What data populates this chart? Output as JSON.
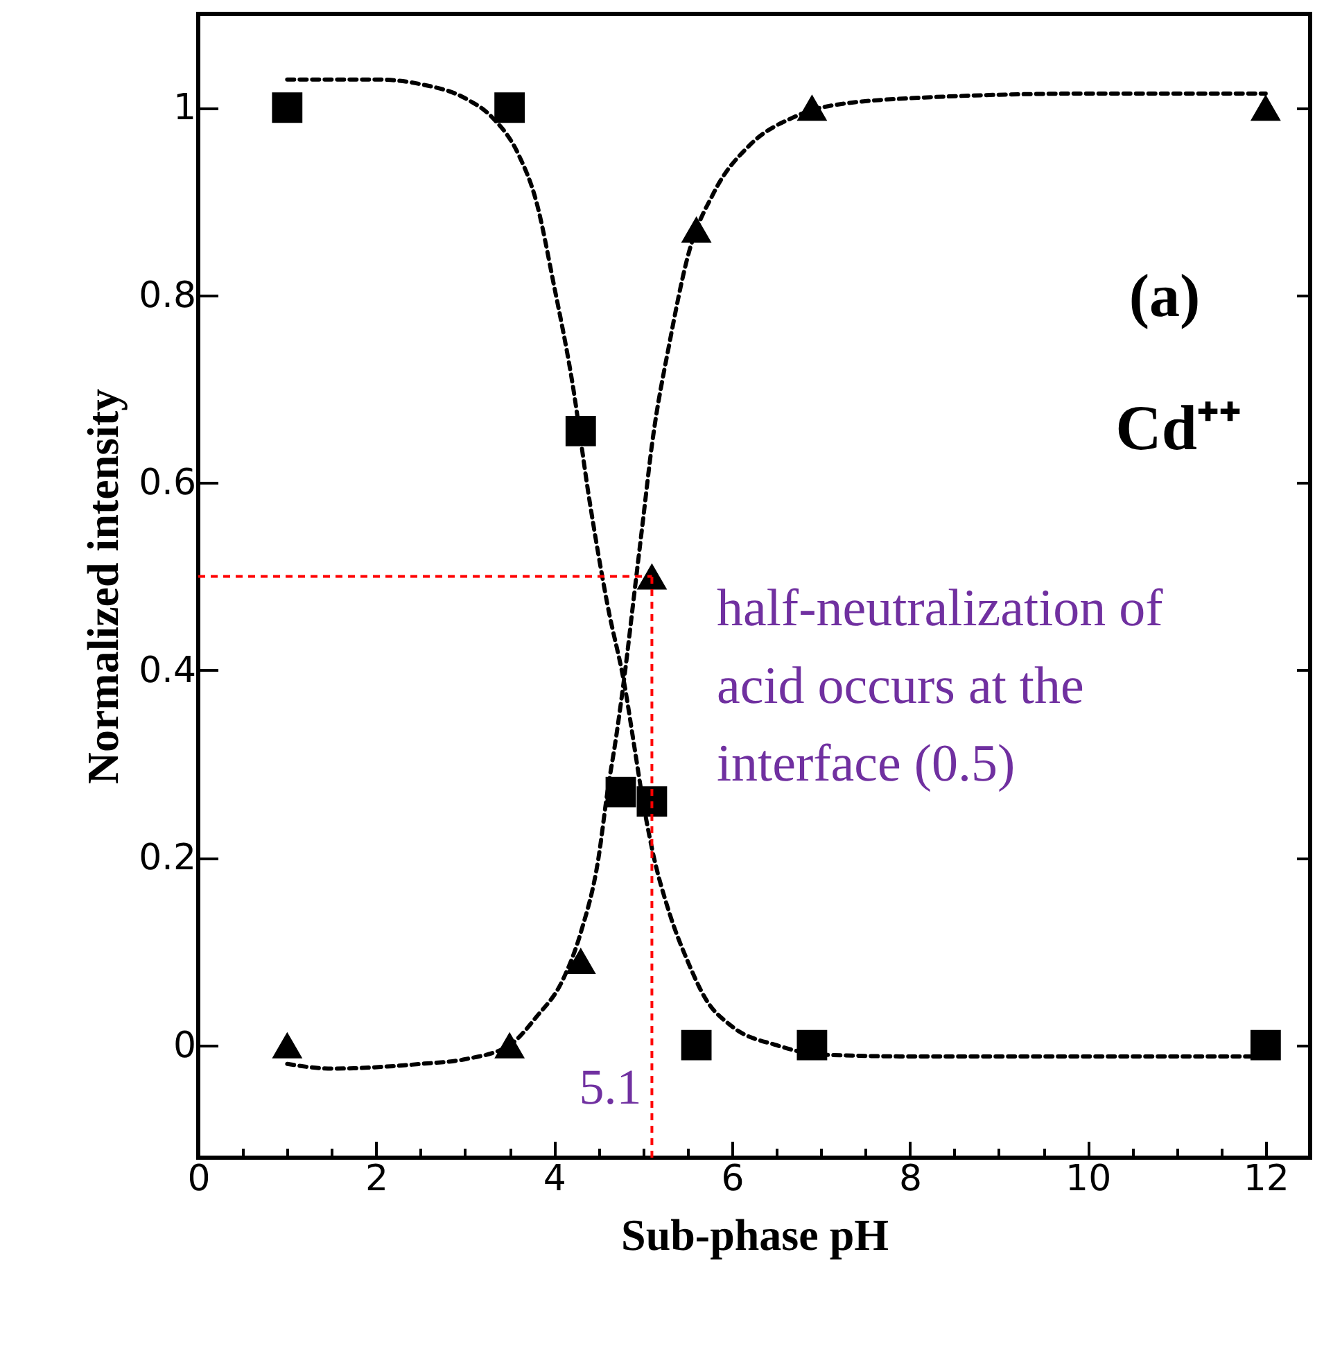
{
  "chart_data": {
    "type": "scatter",
    "xlabel": "Sub-phase pH",
    "ylabel": "Normalized intensity",
    "xlim": [
      0,
      12.5
    ],
    "ylim": [
      -0.12,
      1.1
    ],
    "xticks": [
      0,
      {
        "value": 0.5,
        "label": null
      },
      {
        "value": 1,
        "label": null
      },
      {
        "value": 1.5,
        "label": null
      },
      2,
      {
        "value": 2.5,
        "label": null
      },
      {
        "value": 3,
        "label": null
      },
      {
        "value": 3.5,
        "label": null
      },
      4,
      {
        "value": 4.5,
        "label": null
      },
      {
        "value": 5,
        "label": null
      },
      {
        "value": 5.5,
        "label": null
      },
      6,
      {
        "value": 6.5,
        "label": null
      },
      {
        "value": 7,
        "label": null
      },
      {
        "value": 7.5,
        "label": null
      },
      8,
      {
        "value": 8.5,
        "label": null
      },
      {
        "value": 9,
        "label": null
      },
      {
        "value": 9.5,
        "label": null
      },
      10,
      {
        "value": 10.5,
        "label": null
      },
      {
        "value": 11,
        "label": null
      },
      {
        "value": 11.5,
        "label": null
      },
      12
    ],
    "yticks": [
      0,
      0.2,
      0.4,
      0.6,
      0.8,
      1
    ],
    "grid": false,
    "annotations": [
      "(a)",
      "Cd⁺⁺",
      "half-neutralization of\nacid occurs at the\ninterface (0.5)"
    ],
    "ref_lines": [
      {
        "axis": "y",
        "value": 0.5,
        "color": "#ff0000",
        "line_style": "dashed"
      },
      {
        "axis": "x",
        "value": 5.1,
        "label": "5.1",
        "color": "#ff0000",
        "line_style": "dashed"
      }
    ],
    "series": [
      {
        "type": "line",
        "color": "#000000",
        "marker": "none",
        "line_style": "dashed",
        "x": [
          1,
          2,
          2.5,
          3,
          3.3,
          3.6,
          3.8,
          4,
          4.2,
          4.4,
          4.6,
          4.8,
          4.9,
          5,
          5.1,
          5.3,
          5.5,
          5.7,
          6,
          6.5,
          7,
          8,
          10,
          12
        ],
        "values": [
          1.03,
          1.03,
          1.025,
          1.01,
          0.99,
          0.95,
          0.9,
          0.81,
          0.71,
          0.58,
          0.47,
          0.38,
          0.32,
          0.26,
          0.21,
          0.14,
          0.09,
          0.05,
          0.02,
          0,
          -0.01,
          -0.012,
          -0.012,
          -0.012
        ]
      },
      {
        "type": "line",
        "color": "#000000",
        "marker": "none",
        "line_style": "dashed",
        "x": [
          1,
          1.5,
          2.5,
          3,
          3.5,
          3.8,
          4.1,
          4.3,
          4.5,
          4.6,
          4.7,
          4.8,
          4.9,
          5,
          5.1,
          5.3,
          5.5,
          5.8,
          6.2,
          6.7,
          7,
          8,
          10,
          12
        ],
        "values": [
          -0.02,
          -0.025,
          -0.02,
          -0.015,
          0,
          0.03,
          0.07,
          0.12,
          0.2,
          0.27,
          0.33,
          0.4,
          0.48,
          0.56,
          0.64,
          0.75,
          0.84,
          0.91,
          0.96,
          0.99,
          1,
          1.01,
          1.015,
          1.015
        ]
      },
      {
        "type": "scatter",
        "color": "#000000",
        "marker": "square",
        "x": [
          1,
          3.5,
          4.3,
          4.75,
          5.1,
          5.6,
          6.9,
          12
        ],
        "values": [
          1,
          1,
          0.655,
          0.27,
          0.26,
          0,
          0,
          0
        ]
      },
      {
        "type": "scatter",
        "color": "#000000",
        "marker": "triangle",
        "x": [
          1,
          3.5,
          4.3,
          5.1,
          5.6,
          6.9,
          12
        ],
        "values": [
          0,
          0,
          0.09,
          0.5,
          0.87,
          1,
          1
        ]
      }
    ]
  }
}
